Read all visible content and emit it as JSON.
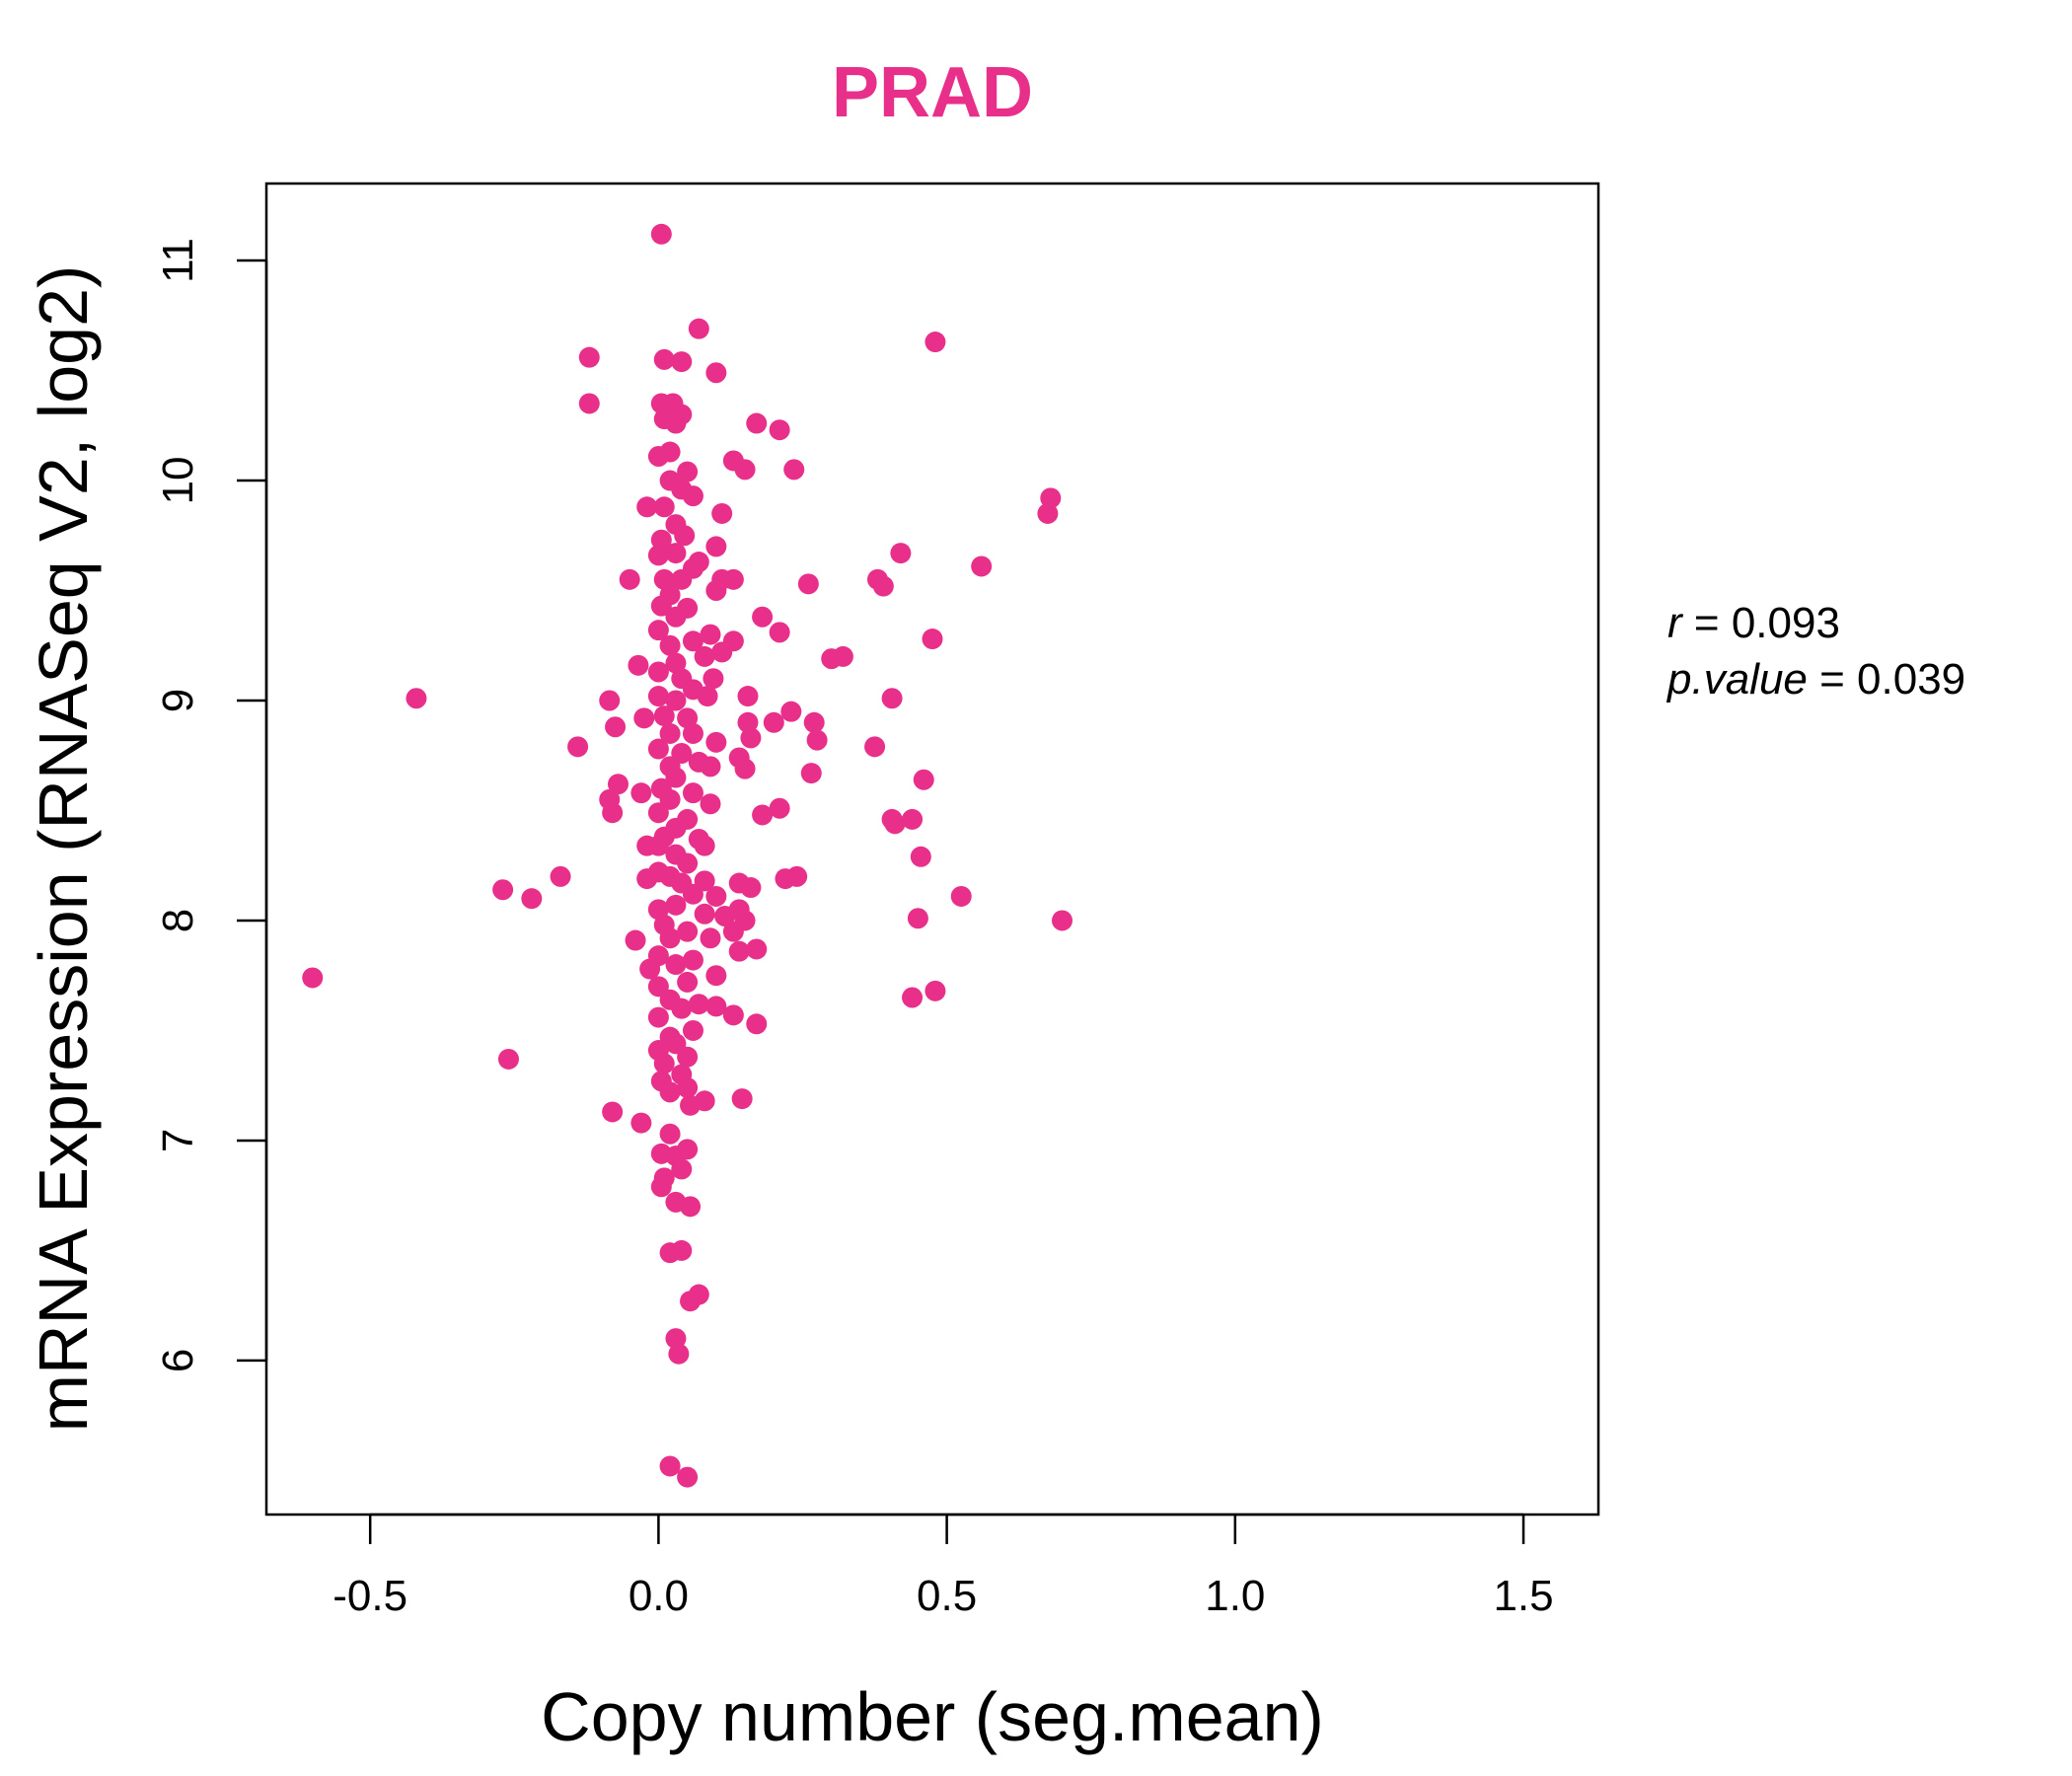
{
  "chart_data": {
    "type": "scatter",
    "title": "PRAD",
    "title_color": "#E8308A",
    "point_color": "#E8308A",
    "xlabel": "Copy number (seg.mean)",
    "ylabel": "mRNA Expression (RNASeq V2, log2)",
    "xlim": [
      -0.68,
      1.63
    ],
    "ylim": [
      5.3,
      11.35
    ],
    "x_ticks": [
      -0.5,
      0.0,
      0.5,
      1.0,
      1.5
    ],
    "x_tick_labels": [
      "-0.5",
      "0.0",
      "0.5",
      "1.0",
      "1.5"
    ],
    "y_ticks": [
      6,
      7,
      8,
      9,
      10,
      11
    ],
    "y_tick_labels": [
      "6",
      "7",
      "8",
      "9",
      "10",
      "11"
    ],
    "grid": false,
    "stats": {
      "r_label": "r",
      "r_value": "0.093",
      "p_label": "p.value",
      "p_value": "0.039"
    },
    "points": [
      [
        0.005,
        11.12
      ],
      [
        0.07,
        10.69
      ],
      [
        0.48,
        10.63
      ],
      [
        -0.12,
        10.56
      ],
      [
        0.01,
        10.55
      ],
      [
        0.04,
        10.54
      ],
      [
        0.1,
        10.49
      ],
      [
        -0.12,
        10.35
      ],
      [
        0.005,
        10.35
      ],
      [
        0.025,
        10.35
      ],
      [
        0.04,
        10.3
      ],
      [
        0.01,
        10.28
      ],
      [
        0.03,
        10.26
      ],
      [
        0.17,
        10.26
      ],
      [
        0.21,
        10.23
      ],
      [
        0.0,
        10.11
      ],
      [
        0.02,
        10.13
      ],
      [
        0.13,
        10.09
      ],
      [
        0.15,
        10.05
      ],
      [
        0.235,
        10.05
      ],
      [
        0.05,
        10.04
      ],
      [
        0.02,
        10.0
      ],
      [
        0.04,
        9.96
      ],
      [
        0.06,
        9.93
      ],
      [
        0.68,
        9.92
      ],
      [
        -0.02,
        9.88
      ],
      [
        0.01,
        9.88
      ],
      [
        0.11,
        9.85
      ],
      [
        0.675,
        9.85
      ],
      [
        0.03,
        9.8
      ],
      [
        0.045,
        9.75
      ],
      [
        0.005,
        9.73
      ],
      [
        0.1,
        9.7
      ],
      [
        0.0,
        9.66
      ],
      [
        0.03,
        9.67
      ],
      [
        0.07,
        9.63
      ],
      [
        0.42,
        9.67
      ],
      [
        0.56,
        9.61
      ],
      [
        0.06,
        9.6
      ],
      [
        -0.05,
        9.55
      ],
      [
        0.01,
        9.55
      ],
      [
        0.04,
        9.55
      ],
      [
        0.11,
        9.55
      ],
      [
        0.13,
        9.55
      ],
      [
        0.26,
        9.53
      ],
      [
        0.38,
        9.55
      ],
      [
        0.39,
        9.52
      ],
      [
        0.1,
        9.5
      ],
      [
        0.02,
        9.48
      ],
      [
        0.005,
        9.43
      ],
      [
        0.05,
        9.42
      ],
      [
        0.03,
        9.38
      ],
      [
        0.18,
        9.38
      ],
      [
        0.0,
        9.32
      ],
      [
        0.09,
        9.3
      ],
      [
        0.21,
        9.31
      ],
      [
        0.475,
        9.28
      ],
      [
        0.06,
        9.27
      ],
      [
        0.13,
        9.27
      ],
      [
        0.02,
        9.25
      ],
      [
        0.11,
        9.22
      ],
      [
        0.08,
        9.2
      ],
      [
        0.3,
        9.19
      ],
      [
        0.32,
        9.2
      ],
      [
        0.03,
        9.17
      ],
      [
        -0.035,
        9.16
      ],
      [
        0.0,
        9.13
      ],
      [
        0.04,
        9.1
      ],
      [
        0.095,
        9.1
      ],
      [
        0.06,
        9.05
      ],
      [
        -0.42,
        9.01
      ],
      [
        -0.085,
        9.0
      ],
      [
        0.0,
        9.02
      ],
      [
        0.03,
        9.0
      ],
      [
        0.085,
        9.02
      ],
      [
        0.155,
        9.02
      ],
      [
        0.405,
        9.01
      ],
      [
        0.23,
        8.95
      ],
      [
        -0.025,
        8.92
      ],
      [
        0.01,
        8.93
      ],
      [
        0.05,
        8.92
      ],
      [
        0.155,
        8.9
      ],
      [
        0.2,
        8.9
      ],
      [
        0.27,
        8.9
      ],
      [
        -0.075,
        8.88
      ],
      [
        0.02,
        8.85
      ],
      [
        0.06,
        8.85
      ],
      [
        0.16,
        8.83
      ],
      [
        0.1,
        8.81
      ],
      [
        0.275,
        8.82
      ],
      [
        -0.14,
        8.79
      ],
      [
        0.375,
        8.79
      ],
      [
        0.0,
        8.78
      ],
      [
        0.04,
        8.76
      ],
      [
        0.14,
        8.74
      ],
      [
        0.07,
        8.72
      ],
      [
        0.02,
        8.7
      ],
      [
        0.09,
        8.7
      ],
      [
        0.15,
        8.69
      ],
      [
        0.265,
        8.67
      ],
      [
        0.46,
        8.64
      ],
      [
        0.03,
        8.65
      ],
      [
        -0.07,
        8.62
      ],
      [
        -0.03,
        8.58
      ],
      [
        0.005,
        8.6
      ],
      [
        0.06,
        8.58
      ],
      [
        -0.085,
        8.55
      ],
      [
        0.02,
        8.55
      ],
      [
        0.09,
        8.53
      ],
      [
        0.21,
        8.51
      ],
      [
        -0.08,
        8.49
      ],
      [
        0.18,
        8.48
      ],
      [
        0.0,
        8.49
      ],
      [
        0.05,
        8.46
      ],
      [
        0.405,
        8.46
      ],
      [
        0.44,
        8.46
      ],
      [
        0.41,
        8.44
      ],
      [
        0.03,
        8.42
      ],
      [
        0.01,
        8.38
      ],
      [
        0.07,
        8.37
      ],
      [
        0.0,
        8.34
      ],
      [
        -0.02,
        8.34
      ],
      [
        0.08,
        8.34
      ],
      [
        0.455,
        8.29
      ],
      [
        0.03,
        8.3
      ],
      [
        0.05,
        8.26
      ],
      [
        0.0,
        8.22
      ],
      [
        0.02,
        8.2
      ],
      [
        -0.17,
        8.2
      ],
      [
        0.22,
        8.19
      ],
      [
        0.24,
        8.2
      ],
      [
        -0.02,
        8.19
      ],
      [
        0.04,
        8.17
      ],
      [
        0.08,
        8.18
      ],
      [
        0.14,
        8.17
      ],
      [
        0.16,
        8.15
      ],
      [
        -0.27,
        8.14
      ],
      [
        0.06,
        8.12
      ],
      [
        0.1,
        8.11
      ],
      [
        0.525,
        8.11
      ],
      [
        -0.22,
        8.1
      ],
      [
        0.03,
        8.07
      ],
      [
        0.14,
        8.05
      ],
      [
        0.0,
        8.05
      ],
      [
        0.08,
        8.03
      ],
      [
        0.115,
        8.02
      ],
      [
        0.45,
        8.01
      ],
      [
        0.7,
        8.0
      ],
      [
        0.15,
        8.0
      ],
      [
        0.01,
        7.98
      ],
      [
        0.05,
        7.95
      ],
      [
        0.13,
        7.95
      ],
      [
        -0.04,
        7.91
      ],
      [
        0.02,
        7.92
      ],
      [
        0.09,
        7.92
      ],
      [
        0.17,
        7.87
      ],
      [
        0.14,
        7.86
      ],
      [
        0.0,
        7.84
      ],
      [
        0.06,
        7.82
      ],
      [
        0.03,
        7.8
      ],
      [
        -0.015,
        7.78
      ],
      [
        0.1,
        7.75
      ],
      [
        -0.6,
        7.74
      ],
      [
        0.05,
        7.72
      ],
      [
        0.0,
        7.7
      ],
      [
        0.48,
        7.68
      ],
      [
        0.44,
        7.65
      ],
      [
        0.02,
        7.64
      ],
      [
        0.07,
        7.62
      ],
      [
        0.1,
        7.61
      ],
      [
        0.04,
        7.6
      ],
      [
        0.13,
        7.57
      ],
      [
        0.0,
        7.56
      ],
      [
        0.17,
        7.53
      ],
      [
        0.06,
        7.5
      ],
      [
        0.02,
        7.47
      ],
      [
        0.03,
        7.44
      ],
      [
        0.0,
        7.41
      ],
      [
        0.05,
        7.38
      ],
      [
        -0.26,
        7.37
      ],
      [
        0.01,
        7.35
      ],
      [
        0.04,
        7.3
      ],
      [
        0.005,
        7.27
      ],
      [
        0.05,
        7.24
      ],
      [
        0.02,
        7.22
      ],
      [
        0.145,
        7.19
      ],
      [
        0.08,
        7.18
      ],
      [
        0.055,
        7.16
      ],
      [
        -0.08,
        7.13
      ],
      [
        -0.03,
        7.08
      ],
      [
        0.02,
        7.03
      ],
      [
        0.05,
        6.96
      ],
      [
        0.005,
        6.94
      ],
      [
        0.03,
        6.93
      ],
      [
        0.04,
        6.87
      ],
      [
        0.01,
        6.83
      ],
      [
        0.005,
        6.79
      ],
      [
        0.03,
        6.72
      ],
      [
        0.055,
        6.7
      ],
      [
        0.02,
        6.49
      ],
      [
        0.04,
        6.5
      ],
      [
        0.07,
        6.3
      ],
      [
        0.055,
        6.27
      ],
      [
        0.03,
        6.1
      ],
      [
        0.035,
        6.03
      ],
      [
        0.02,
        5.52
      ],
      [
        0.05,
        5.47
      ]
    ]
  }
}
